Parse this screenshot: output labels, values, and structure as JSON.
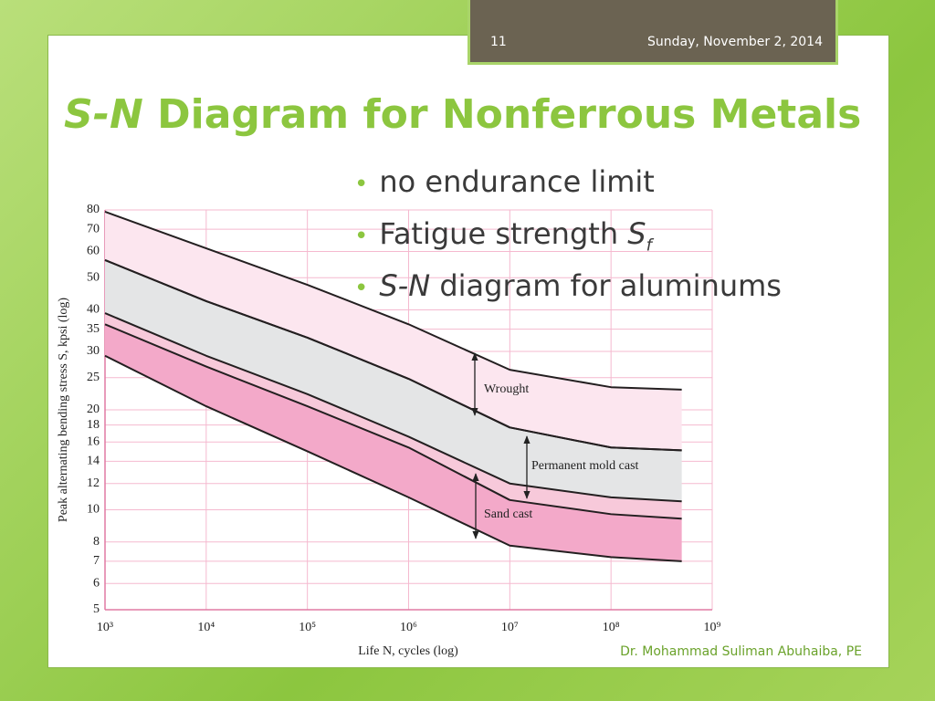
{
  "slide": {
    "number": "11",
    "date": "Sunday, November 2, 2014",
    "title": [
      "S-N",
      " Diagram for Nonferrous Metals"
    ],
    "bullets": [
      [
        "no endurance limit"
      ],
      [
        "Fatigue strength ",
        "S",
        "f"
      ],
      [
        "S-N",
        " diagram for aluminums"
      ]
    ],
    "footer": "Dr. Mohammad Suliman Abuhaiba, PE"
  },
  "chart_data": {
    "type": "band",
    "xlabel": "Life N, cycles (log)",
    "ylabel": "Peak alternating bending stress S, kpsi (log)",
    "xscale": "log",
    "yscale": "log",
    "grid": true,
    "x": [
      1000,
      10000,
      100000,
      1000000,
      10000000,
      100000000,
      500000000
    ],
    "xlim": [
      1000,
      1000000000
    ],
    "xticks": [
      {
        "value": 1000,
        "label": "10³"
      },
      {
        "value": 10000,
        "label": "10⁴"
      },
      {
        "value": 100000,
        "label": "10⁵"
      },
      {
        "value": 1000000,
        "label": "10⁶"
      },
      {
        "value": 10000000,
        "label": "10⁷"
      },
      {
        "value": 100000000,
        "label": "10⁸"
      },
      {
        "value": 1000000000,
        "label": "10⁹"
      }
    ],
    "ylim": [
      5,
      80
    ],
    "yticks": [
      5,
      6,
      7,
      8,
      10,
      12,
      14,
      16,
      18,
      20,
      25,
      30,
      35,
      40,
      50,
      60,
      70,
      80
    ],
    "gap_color": "#f7c9da",
    "series": [
      {
        "name": "Wrought",
        "color": "#fce6ef",
        "upper": [
          79,
          61.3,
          47.6,
          36.2,
          26.4,
          23.4,
          23.0
        ],
        "lower": [
          56.5,
          42.5,
          33.0,
          24.8,
          17.7,
          15.4,
          15.1
        ]
      },
      {
        "name": "Permanent mold cast",
        "color": "#e4e5e6",
        "upper": [
          56.5,
          42.5,
          33.0,
          24.8,
          17.7,
          15.4,
          15.1
        ],
        "lower": [
          39.1,
          29.1,
          22.3,
          16.6,
          12.0,
          10.9,
          10.6
        ]
      },
      {
        "name": "Sand cast",
        "color": "#f3a9c9",
        "upper": [
          36.2,
          27.0,
          20.5,
          15.4,
          10.7,
          9.7,
          9.4
        ],
        "lower": [
          29.1,
          20.5,
          15.0,
          10.9,
          7.8,
          7.2,
          7.0
        ]
      }
    ]
  }
}
